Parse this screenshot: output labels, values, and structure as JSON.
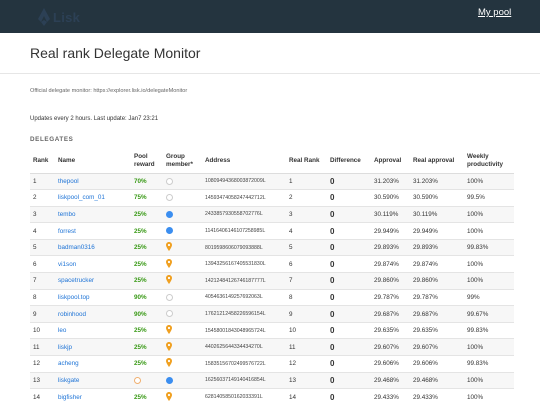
{
  "header": {
    "logo_text": "Lisk",
    "my_pool_label": "My pool"
  },
  "page": {
    "title": "Real rank Delegate Monitor",
    "official_text": "Official delegate monitor: https://explorer.lisk.io/delegateMonitor",
    "updates_text": "Updates every 2 hours. Last update: Jan7 23:21",
    "section_label": "DELEGATES"
  },
  "colors": {
    "topbar": "#24343f",
    "link_blue": "#1d73d6",
    "reward_green": "#3a9a17",
    "member_blue": "#3b8ef0",
    "pin_orange": "#f0a020"
  },
  "table": {
    "headers": {
      "rank": "Rank",
      "name": "Name",
      "pool_reward": "Pool reward",
      "group_member": "Group member*",
      "address": "Address",
      "real_rank": "Real Rank",
      "difference": "Difference",
      "approval": "Approval",
      "real_approval": "Real approval",
      "weekly_productivity": "Weekly productivity"
    },
    "rows": [
      {
        "rank": "1",
        "name": "thepool",
        "reward": "70%",
        "reward_color": "green",
        "member": "empty",
        "address": "10809494368003872009L",
        "real_rank": "1",
        "difference": "0",
        "approval": "31.203%",
        "real_approval": "31.203%",
        "productivity": "100%"
      },
      {
        "rank": "2",
        "name": "liskpool_com_01",
        "reward": "75%",
        "reward_color": "green",
        "member": "empty",
        "address": "14593474058247442712L",
        "real_rank": "2",
        "difference": "0",
        "approval": "30.590%",
        "real_approval": "30.590%",
        "productivity": "99.5%"
      },
      {
        "rank": "3",
        "name": "tembo",
        "reward": "25%",
        "reward_color": "green",
        "member": "blue",
        "address": "2433857930558702776L",
        "real_rank": "3",
        "difference": "0",
        "approval": "30.119%",
        "real_approval": "30.119%",
        "productivity": "100%"
      },
      {
        "rank": "4",
        "name": "forrest",
        "reward": "25%",
        "reward_color": "green",
        "member": "blue",
        "address": "11416406146107258985L",
        "real_rank": "4",
        "difference": "0",
        "approval": "29.949%",
        "real_approval": "29.949%",
        "productivity": "100%"
      },
      {
        "rank": "5",
        "name": "badman0316",
        "reward": "25%",
        "reward_color": "green",
        "member": "pin",
        "address": "8019598606079093888L",
        "real_rank": "5",
        "difference": "0",
        "approval": "29.893%",
        "real_approval": "29.893%",
        "productivity": "99.83%"
      },
      {
        "rank": "6",
        "name": "vi1son",
        "reward": "25%",
        "reward_color": "green",
        "member": "pin",
        "address": "13943256167405531830L",
        "real_rank": "6",
        "difference": "0",
        "approval": "29.874%",
        "real_approval": "29.874%",
        "productivity": "100%"
      },
      {
        "rank": "7",
        "name": "spacetrucker",
        "reward": "25%",
        "reward_color": "green",
        "member": "pin",
        "address": "14212484126746187777L",
        "real_rank": "7",
        "difference": "0",
        "approval": "29.860%",
        "real_approval": "29.860%",
        "productivity": "100%"
      },
      {
        "rank": "8",
        "name": "liskpool.top",
        "reward": "90%",
        "reward_color": "green",
        "member": "empty",
        "address": "4054636149257692063L",
        "real_rank": "8",
        "difference": "0",
        "approval": "29.787%",
        "real_approval": "29.787%",
        "productivity": "99%"
      },
      {
        "rank": "9",
        "name": "robinhood",
        "reward": "90%",
        "reward_color": "green",
        "member": "empty",
        "address": "17621212458226596154L",
        "real_rank": "9",
        "difference": "0",
        "approval": "29.687%",
        "real_approval": "29.687%",
        "productivity": "99.67%"
      },
      {
        "rank": "10",
        "name": "leo",
        "reward": "25%",
        "reward_color": "green",
        "member": "pin",
        "address": "15458001843048965724L",
        "real_rank": "10",
        "difference": "0",
        "approval": "29.635%",
        "real_approval": "29.635%",
        "productivity": "99.83%"
      },
      {
        "rank": "11",
        "name": "liskjp",
        "reward": "25%",
        "reward_color": "green",
        "member": "pin",
        "address": "4402625644334434270L",
        "real_rank": "11",
        "difference": "0",
        "approval": "29.607%",
        "real_approval": "29.607%",
        "productivity": "100%"
      },
      {
        "rank": "12",
        "name": "acheng",
        "reward": "25%",
        "reward_color": "green",
        "member": "pin",
        "address": "15835156702499576722L",
        "real_rank": "12",
        "difference": "0",
        "approval": "29.606%",
        "real_approval": "29.606%",
        "productivity": "99.83%"
      },
      {
        "rank": "13",
        "name": "liskgate",
        "reward": "",
        "reward_color": "green",
        "member": "empty-orange+blue",
        "address": "16256037149140416854L",
        "real_rank": "13",
        "difference": "0",
        "approval": "29.468%",
        "real_approval": "29.468%",
        "productivity": "100%"
      },
      {
        "rank": "14",
        "name": "bigfisher",
        "reward": "25%",
        "reward_color": "green",
        "member": "pin",
        "address": "6281405850162033391L",
        "real_rank": "14",
        "difference": "0",
        "approval": "29.433%",
        "real_approval": "29.433%",
        "productivity": "100%"
      }
    ]
  }
}
